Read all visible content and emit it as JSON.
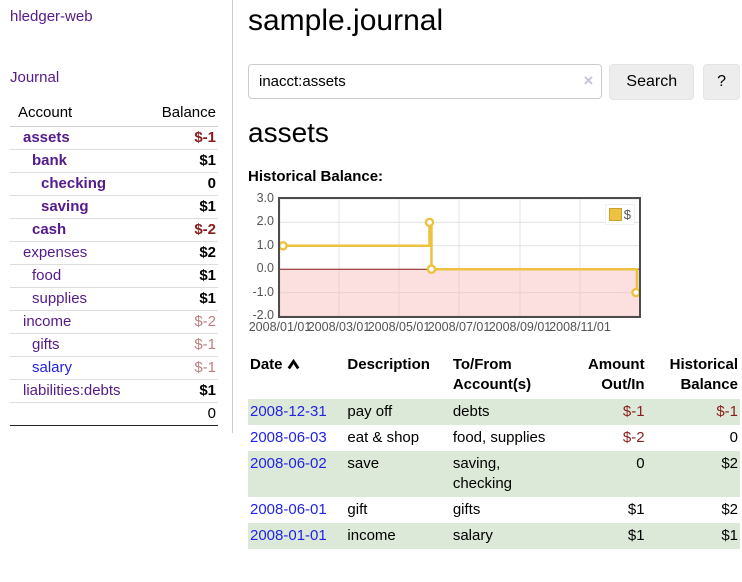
{
  "app": {
    "brand": "hledger-web",
    "nav_journal": "Journal"
  },
  "sidebar": {
    "headers": [
      "Account",
      "Balance"
    ],
    "rows": [
      {
        "account": "assets",
        "balance": "$-1",
        "depth": 1,
        "bold": true,
        "neg": "strong"
      },
      {
        "account": "bank",
        "balance": "$1",
        "depth": 2,
        "bold": true,
        "neg": ""
      },
      {
        "account": "checking",
        "balance": "0",
        "depth": 3,
        "bold": true,
        "neg": ""
      },
      {
        "account": "saving",
        "balance": "$1",
        "depth": 3,
        "bold": true,
        "neg": ""
      },
      {
        "account": "cash",
        "balance": "$-2",
        "depth": 2,
        "bold": true,
        "neg": "strong"
      },
      {
        "account": "expenses",
        "balance": "$2",
        "depth": 1,
        "bold": false,
        "neg": ""
      },
      {
        "account": "food",
        "balance": "$1",
        "depth": 2,
        "bold": false,
        "neg": ""
      },
      {
        "account": "supplies",
        "balance": "$1",
        "depth": 2,
        "bold": false,
        "neg": ""
      },
      {
        "account": "income",
        "balance": "$-2",
        "depth": 1,
        "bold": false,
        "neg": "soft"
      },
      {
        "account": "gifts",
        "balance": "$-1",
        "depth": 2,
        "bold": false,
        "neg": "soft"
      },
      {
        "account": "salary",
        "balance": "$-1",
        "depth": 2,
        "bold": false,
        "neg": "soft",
        "link": "unvisited"
      },
      {
        "account": "liabilities:debts",
        "balance": "$1",
        "depth": 1,
        "bold": false,
        "neg": ""
      }
    ],
    "total": "0"
  },
  "header": {
    "title": "sample.journal"
  },
  "search": {
    "value": "inacct:assets",
    "clear_icon": "×",
    "button_label": "Search",
    "help_label": "?"
  },
  "register": {
    "account_title": "assets",
    "chart_label": "Historical Balance:"
  },
  "chart_data": {
    "type": "line",
    "step": true,
    "title": "Historical Balance",
    "series": [
      {
        "name": "$",
        "points": [
          [
            "2008-01-01",
            1
          ],
          [
            "2008-06-01",
            2
          ],
          [
            "2008-06-03",
            0
          ],
          [
            "2008-12-31",
            -1
          ]
        ]
      }
    ],
    "ylim": [
      -2,
      3
    ],
    "yticks": [
      "3.0",
      "2.0",
      "1.0",
      "0.0",
      "-1.0",
      "-2.0"
    ],
    "xticks": [
      "2008/01/01",
      "2008/03/01",
      "2008/05/01",
      "2008/07/01",
      "2008/09/01",
      "2008/11/01"
    ],
    "xrange": [
      "2008-01-01",
      "2008-12-31"
    ],
    "legend": [
      "$"
    ],
    "legend_position": "top-right",
    "grid": true,
    "line_color": "#edc240",
    "marker_fill": "#ffffff",
    "zero_line_color": "#8b1a1a",
    "negative_region_fill": "rgba(248,187,187,0.45)",
    "grid_color": "#e3e3e3"
  },
  "transactions": {
    "headers": {
      "date": "Date",
      "description": "Description",
      "accounts": "To/From\nAccount(s)",
      "amount": "Amount\nOut/In",
      "balance": "Historical\nBalance"
    },
    "rows": [
      {
        "date": "2008-12-31",
        "description": "pay off",
        "accounts": "debts",
        "amount": "$-1",
        "balance": "$-1"
      },
      {
        "date": "2008-06-03",
        "description": "eat & shop",
        "accounts": "food, supplies",
        "amount": "$-2",
        "balance": "0"
      },
      {
        "date": "2008-06-02",
        "description": "save",
        "accounts": "saving,\nchecking",
        "amount": "0",
        "balance": "$2"
      },
      {
        "date": "2008-06-01",
        "description": "gift",
        "accounts": "gifts",
        "amount": "$1",
        "balance": "$2"
      },
      {
        "date": "2008-01-01",
        "description": "income",
        "accounts": "salary",
        "amount": "$1",
        "balance": "$1"
      }
    ]
  }
}
